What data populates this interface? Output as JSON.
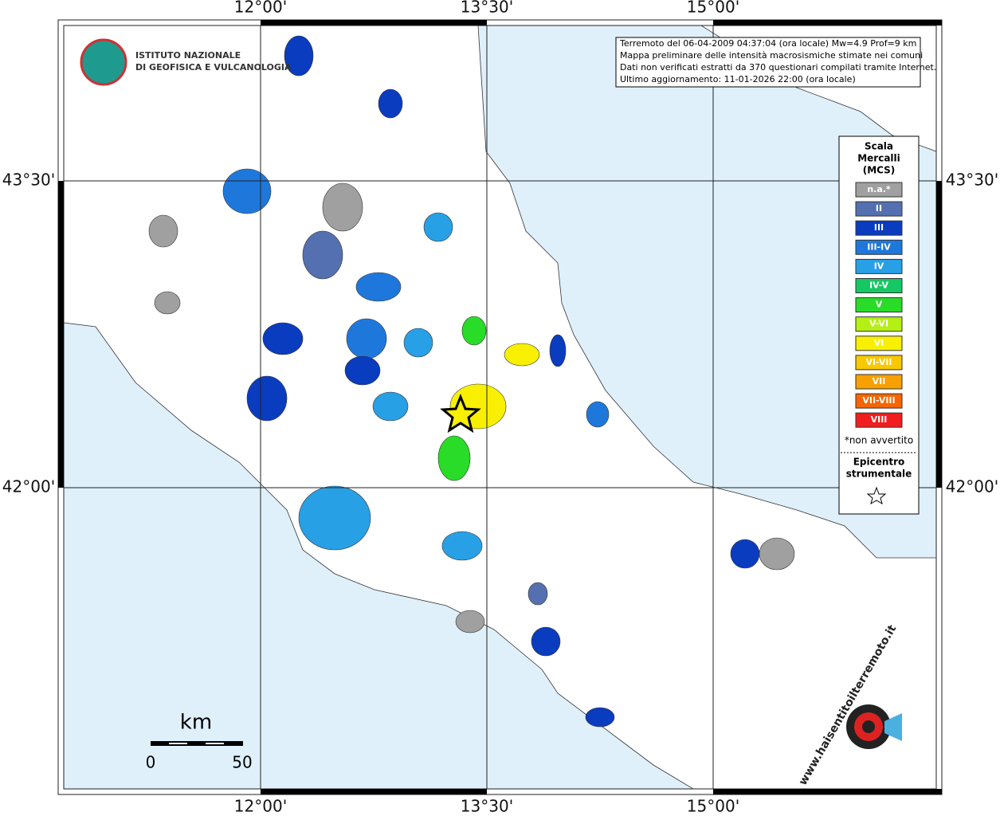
{
  "lon_labels": [
    "12°00'",
    "13°30'",
    "15°00'"
  ],
  "lat_labels": [
    "43°30'",
    "42°00'"
  ],
  "info": [
    "Terremoto del 06-04-2009 04:37:04 (ora locale) Mw=4.9 Prof=9 km",
    "Mappa preliminare delle intensità macrosismiche stimate nei comuni",
    "Dati non verificati estratti da 370 questionari compilati tramite Internet.",
    "Ultimo aggiornamento: 11-01-2026 22:00 (ora locale)"
  ],
  "legend": {
    "title": [
      "Scala",
      "Mercalli",
      "(MCS)"
    ],
    "classes": [
      {
        "label": "n.a.*",
        "color": "#a0a0a0"
      },
      {
        "label": "II",
        "color": "#5470b0"
      },
      {
        "label": "III",
        "color": "#0a3cc0"
      },
      {
        "label": "III-IV",
        "color": "#1e78dc"
      },
      {
        "label": "IV",
        "color": "#28a0e6"
      },
      {
        "label": "IV-V",
        "color": "#14c864"
      },
      {
        "label": "V",
        "color": "#28dc28"
      },
      {
        "label": "V-VI",
        "color": "#b4f014"
      },
      {
        "label": "VI",
        "color": "#f8f000"
      },
      {
        "label": "VI-VII",
        "color": "#f8c800"
      },
      {
        "label": "VII",
        "color": "#f8a000"
      },
      {
        "label": "VII-VIII",
        "color": "#f86400"
      },
      {
        "label": "VIII",
        "color": "#f01e1e"
      }
    ],
    "note": "*non avvertito",
    "epicenter": [
      "Epicentro",
      "strumentale"
    ]
  },
  "scale_bar": {
    "unit": "km",
    "labels": [
      "0",
      "50"
    ]
  },
  "logo": {
    "institute": [
      "ISTITUTO NAZIONALE",
      "DI GEOFISICA E VULCANOLOGIA"
    ],
    "site": "www.haisentitoilterremoto.it"
  }
}
